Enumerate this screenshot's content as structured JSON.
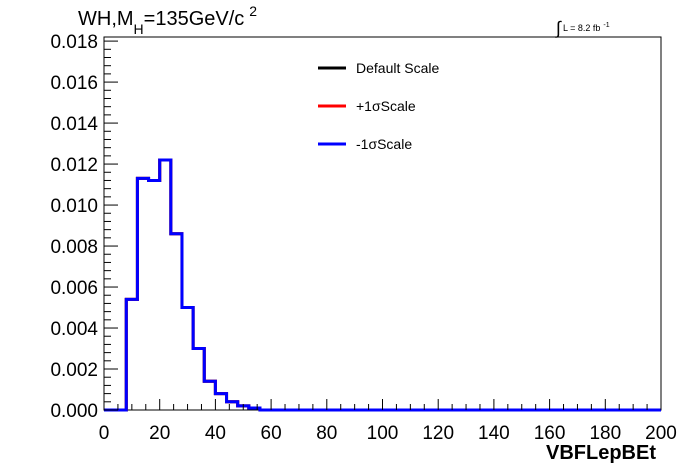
{
  "chart_data": {
    "type": "line",
    "title": {
      "main": "WH,M",
      "subscript": "H",
      "rest": "=135GeV/c",
      "superscript": "2"
    },
    "luminosity": {
      "symbol": "∫",
      "text": "L = 8.2 fb",
      "superscript": "-1"
    },
    "xlabel": "VBFLepBEt",
    "ylabel": "",
    "xlim": [
      0,
      200
    ],
    "ylim": [
      0,
      0.0182
    ],
    "xticks": [
      "0",
      "20",
      "40",
      "60",
      "80",
      "100",
      "120",
      "140",
      "160",
      "180",
      "200"
    ],
    "yticks": [
      "0.000",
      "0.002",
      "0.004",
      "0.006",
      "0.008",
      "0.010",
      "0.012",
      "0.014",
      "0.016",
      "0.018"
    ],
    "bin_width": 4,
    "bin_edges_start": 0,
    "legend_position": "top-center",
    "series": [
      {
        "name": "Default Scale",
        "color": "#000000",
        "values": [
          0,
          0,
          0.0054,
          0.0113,
          0.0112,
          0.0122,
          0.0086,
          0.005,
          0.003,
          0.0014,
          0.0008,
          0.0004,
          0.0002,
          0.0001,
          0,
          0,
          0,
          0,
          0,
          0,
          0,
          0,
          0,
          0,
          0,
          0,
          0,
          0,
          0,
          0,
          0,
          0,
          0,
          0,
          0,
          0,
          0,
          0,
          0,
          0,
          0,
          0,
          0,
          0,
          0,
          0,
          0,
          0,
          0,
          0
        ]
      },
      {
        "name": "+1σScale",
        "color": "#ff0000",
        "values": [
          0,
          0,
          0.0054,
          0.0113,
          0.0112,
          0.0122,
          0.0086,
          0.005,
          0.003,
          0.0014,
          0.0008,
          0.0004,
          0.0002,
          0.0001,
          0,
          0,
          0,
          0,
          0,
          0,
          0,
          0,
          0,
          0,
          0,
          0,
          0,
          0,
          0,
          0,
          0,
          0,
          0,
          0,
          0,
          0,
          0,
          0,
          0,
          0,
          0,
          0,
          0,
          0,
          0,
          0,
          0,
          0,
          0,
          0
        ]
      },
      {
        "name": "-1σScale",
        "color": "#0000ff",
        "values": [
          0,
          0,
          0.0054,
          0.0113,
          0.0112,
          0.0122,
          0.0086,
          0.005,
          0.003,
          0.0014,
          0.0008,
          0.0004,
          0.0002,
          0.0001,
          0,
          0,
          0,
          0,
          0,
          0,
          0,
          0,
          0,
          0,
          0,
          0,
          0,
          0,
          0,
          0,
          0,
          0,
          0,
          0,
          0,
          0,
          0,
          0,
          0,
          0,
          0,
          0,
          0,
          0,
          0,
          0,
          0,
          0,
          0,
          0
        ]
      }
    ]
  }
}
